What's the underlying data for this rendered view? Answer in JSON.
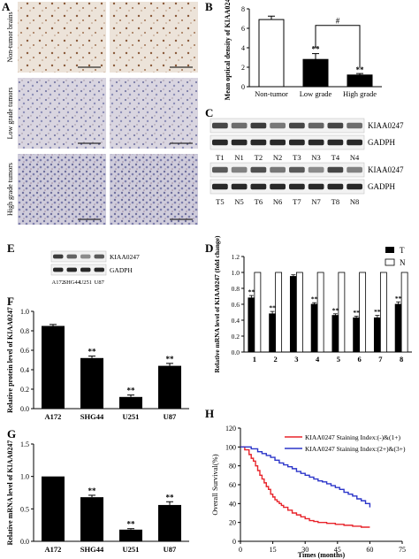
{
  "panel_letters": [
    "A",
    "B",
    "C",
    "D",
    "E",
    "F",
    "G",
    "H"
  ],
  "panelA": {
    "row_labels": [
      "Non-tumor brains",
      "Low grade tumors",
      "High grade tumors"
    ]
  },
  "blots": {
    "C_top_rows": [
      "KIAA0247",
      "GADPH"
    ],
    "C_top_lanes": [
      "T1",
      "N1",
      "T2",
      "N2",
      "T3",
      "N3",
      "T4",
      "N4"
    ],
    "C_bottom_rows": [
      "KIAA0247",
      "GADPH"
    ],
    "C_bottom_lanes": [
      "T5",
      "N5",
      "T6",
      "N6",
      "T7",
      "N7",
      "T8",
      "N8"
    ],
    "E_rows": [
      "KIAA0247",
      "GADPH"
    ],
    "E_lanes": [
      "A172",
      "SHG44",
      "U251",
      "U87"
    ]
  },
  "chart_data": [
    {
      "panel": "B",
      "type": "bar",
      "categories": [
        "Non-tumor",
        "Low grade",
        "High grade"
      ],
      "values": [
        6.9,
        2.8,
        1.2
      ],
      "errors": [
        0.35,
        0.6,
        0.15
      ],
      "fills": [
        "#ffffff",
        "#000000",
        "#000000"
      ],
      "ylabel": "Mean optical density of KIAA0247",
      "ylim": [
        0,
        8
      ],
      "yticks": [
        "0",
        "2",
        "4",
        "6",
        "8"
      ],
      "annotations": [
        "**",
        "**",
        "#"
      ]
    },
    {
      "panel": "D",
      "type": "bar",
      "categories": [
        "1",
        "2",
        "3",
        "4",
        "5",
        "6",
        "7",
        "8"
      ],
      "series": [
        {
          "name": "T",
          "values": [
            0.68,
            0.48,
            0.95,
            0.6,
            0.46,
            0.43,
            0.43,
            0.6
          ],
          "errors": [
            0.03,
            0.03,
            0.02,
            0.02,
            0.02,
            0.02,
            0.03,
            0.03
          ]
        },
        {
          "name": "N",
          "values": [
            1.0,
            1.0,
            1.0,
            1.0,
            1.0,
            1.0,
            1.0,
            1.0
          ]
        }
      ],
      "ylabel": "Relative mRNA level of KIAA0247 (fold change)",
      "ylim": [
        0,
        1.2
      ],
      "yticks": [
        "0.0",
        "0.2",
        "0.4",
        "0.6",
        "0.8",
        "1.0",
        "1.2"
      ],
      "annotations": [
        "**",
        "**",
        "**",
        "**",
        "**",
        "**",
        "**"
      ],
      "legend": "top-right"
    },
    {
      "panel": "F",
      "type": "bar",
      "categories": [
        "A172",
        "SHG44",
        "U251",
        "U87"
      ],
      "values": [
        0.85,
        0.52,
        0.12,
        0.44
      ],
      "errors": [
        0.015,
        0.02,
        0.02,
        0.025
      ],
      "ylabel": "Relative protein level of KIAA0247",
      "ylim": [
        0,
        1.0
      ],
      "yticks": [
        "0.0",
        "0.2",
        "0.4",
        "0.6",
        "0.8",
        "1.0"
      ],
      "annotations": [
        "**",
        "**",
        "**"
      ]
    },
    {
      "panel": "G",
      "type": "bar",
      "categories": [
        "A172",
        "SHG44",
        "U251",
        "U87"
      ],
      "values": [
        1.0,
        0.68,
        0.18,
        0.56
      ],
      "errors": [
        0,
        0.03,
        0.015,
        0.05
      ],
      "ylabel": "Relative mRNA level of KIAA0247",
      "ylim": [
        0,
        1.5
      ],
      "yticks": [
        "0.0",
        "0.5",
        "1.0",
        "1.5"
      ],
      "annotations": [
        "**",
        "**",
        "**"
      ]
    },
    {
      "panel": "H",
      "type": "line",
      "series": [
        {
          "name": "KIAA0247 Staining Index:(-)&(1+)",
          "color": "#e8232a",
          "x": [
            0,
            2,
            4,
            5,
            6,
            7,
            8,
            9,
            10,
            11,
            12,
            13,
            14,
            15,
            16,
            17,
            18,
            19,
            20,
            22,
            24,
            26,
            28,
            30,
            32,
            34,
            36,
            40,
            44,
            48,
            52,
            56,
            60
          ],
          "y": [
            100,
            97,
            92,
            88,
            85,
            80,
            75,
            70,
            66,
            62,
            58,
            55,
            50,
            47,
            44,
            42,
            40,
            38,
            36,
            33,
            30,
            28,
            26,
            24,
            22,
            21,
            20,
            19,
            18,
            17,
            16,
            15,
            15
          ]
        },
        {
          "name": "KIAA0247 Staining Index:(2+)&(3+)",
          "color": "#2b35c9",
          "x": [
            0,
            5,
            8,
            10,
            12,
            14,
            16,
            18,
            20,
            22,
            24,
            26,
            28,
            30,
            32,
            34,
            36,
            38,
            40,
            42,
            44,
            46,
            48,
            50,
            52,
            54,
            56,
            58,
            60
          ],
          "y": [
            100,
            98,
            95,
            93,
            91,
            89,
            86,
            83,
            81,
            79,
            77,
            74,
            72,
            70,
            68,
            66,
            64,
            63,
            61,
            59,
            57,
            55,
            52,
            50,
            48,
            45,
            43,
            40,
            36
          ]
        }
      ],
      "ylabel": "Overall Survival(%)",
      "xlabel": "Times (months)",
      "xlim": [
        0,
        75
      ],
      "ylim": [
        0,
        120
      ],
      "xticks": [
        "0",
        "15",
        "30",
        "45",
        "60",
        "75"
      ],
      "yticks": [
        "0",
        "20",
        "40",
        "60",
        "80",
        "100",
        "120"
      ],
      "legend": "top-right"
    }
  ]
}
